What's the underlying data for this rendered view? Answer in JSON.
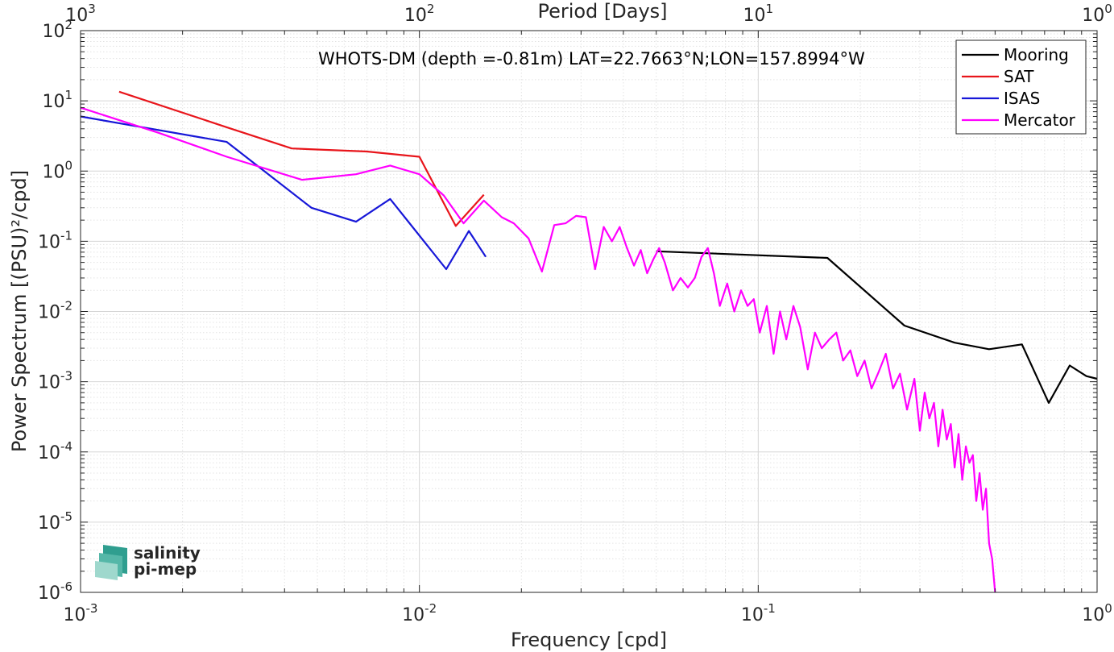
{
  "chart_data": {
    "type": "line",
    "annotation": "WHOTS-DM (depth =-0.81m) LAT=22.7663°N;LON=157.8994°W",
    "xlabel": "Frequency [cpd]",
    "ylabel": "Power Spectrum [(PSU)²/cpd]",
    "top_xlabel": "Period [Days]",
    "x_scale": "log",
    "y_scale": "log",
    "xlim": [
      0.001,
      1
    ],
    "ylim": [
      1e-06,
      100
    ],
    "grid": true,
    "legend_position": "top-right",
    "x_ticks": [
      {
        "base": "10",
        "exp": "-3"
      },
      {
        "base": "10",
        "exp": "-2"
      },
      {
        "base": "10",
        "exp": "-1"
      },
      {
        "base": "10",
        "exp": "0"
      }
    ],
    "top_ticks": [
      {
        "base": "10",
        "exp": "3"
      },
      {
        "base": "10",
        "exp": "2"
      },
      {
        "base": "10",
        "exp": "1"
      },
      {
        "base": "10",
        "exp": "0"
      }
    ],
    "y_ticks": [
      {
        "base": "10",
        "exp": "2"
      },
      {
        "base": "10",
        "exp": "1"
      },
      {
        "base": "10",
        "exp": "0"
      },
      {
        "base": "10",
        "exp": "-1"
      },
      {
        "base": "10",
        "exp": "-2"
      },
      {
        "base": "10",
        "exp": "-3"
      },
      {
        "base": "10",
        "exp": "-4"
      },
      {
        "base": "10",
        "exp": "-5"
      },
      {
        "base": "10",
        "exp": "-6"
      }
    ],
    "series": [
      {
        "name": "Mooring",
        "color": "#000000",
        "points": [
          [
            0.05,
            0.072
          ],
          [
            0.16,
            0.058
          ],
          [
            0.27,
            0.0063
          ],
          [
            0.38,
            0.0036
          ],
          [
            0.48,
            0.0029
          ],
          [
            0.6,
            0.0034
          ],
          [
            0.72,
            0.0005
          ],
          [
            0.83,
            0.0017
          ],
          [
            0.93,
            0.0012
          ],
          [
            1.0,
            0.0011
          ]
        ]
      },
      {
        "name": "SAT",
        "color": "#e8151b",
        "points": [
          [
            0.0013,
            13.5
          ],
          [
            0.0027,
            4.2
          ],
          [
            0.0042,
            2.1
          ],
          [
            0.007,
            1.9
          ],
          [
            0.01,
            1.6
          ],
          [
            0.0128,
            0.165
          ],
          [
            0.0155,
            0.46
          ]
        ]
      },
      {
        "name": "ISAS",
        "color": "#1717d8",
        "points": [
          [
            0.001,
            6.0
          ],
          [
            0.0027,
            2.6
          ],
          [
            0.0048,
            0.3
          ],
          [
            0.0065,
            0.19
          ],
          [
            0.0082,
            0.4
          ],
          [
            0.012,
            0.04
          ],
          [
            0.014,
            0.14
          ],
          [
            0.0157,
            0.06
          ]
        ]
      },
      {
        "name": "Mercator",
        "color": "#ff00ff",
        "points": [
          [
            0.001,
            8.0
          ],
          [
            0.0017,
            3.5
          ],
          [
            0.0027,
            1.6
          ],
          [
            0.0045,
            0.75
          ],
          [
            0.0065,
            0.9
          ],
          [
            0.0082,
            1.2
          ],
          [
            0.01,
            0.9
          ],
          [
            0.0118,
            0.45
          ],
          [
            0.0135,
            0.18
          ],
          [
            0.0155,
            0.38
          ],
          [
            0.0175,
            0.22
          ],
          [
            0.019,
            0.18
          ],
          [
            0.021,
            0.11
          ],
          [
            0.023,
            0.037
          ],
          [
            0.025,
            0.17
          ],
          [
            0.027,
            0.18
          ],
          [
            0.029,
            0.23
          ],
          [
            0.031,
            0.22
          ],
          [
            0.033,
            0.04
          ],
          [
            0.035,
            0.16
          ],
          [
            0.037,
            0.1
          ],
          [
            0.039,
            0.16
          ],
          [
            0.041,
            0.08
          ],
          [
            0.043,
            0.045
          ],
          [
            0.045,
            0.075
          ],
          [
            0.047,
            0.035
          ],
          [
            0.049,
            0.055
          ],
          [
            0.051,
            0.08
          ],
          [
            0.053,
            0.05
          ],
          [
            0.056,
            0.02
          ],
          [
            0.059,
            0.03
          ],
          [
            0.062,
            0.022
          ],
          [
            0.065,
            0.03
          ],
          [
            0.068,
            0.06
          ],
          [
            0.071,
            0.08
          ],
          [
            0.074,
            0.035
          ],
          [
            0.077,
            0.012
          ],
          [
            0.081,
            0.025
          ],
          [
            0.085,
            0.01
          ],
          [
            0.089,
            0.02
          ],
          [
            0.093,
            0.012
          ],
          [
            0.097,
            0.015
          ],
          [
            0.101,
            0.005
          ],
          [
            0.106,
            0.012
          ],
          [
            0.111,
            0.0025
          ],
          [
            0.116,
            0.01
          ],
          [
            0.121,
            0.004
          ],
          [
            0.127,
            0.012
          ],
          [
            0.133,
            0.006
          ],
          [
            0.14,
            0.0015
          ],
          [
            0.147,
            0.005
          ],
          [
            0.154,
            0.003
          ],
          [
            0.162,
            0.004
          ],
          [
            0.17,
            0.005
          ],
          [
            0.178,
            0.002
          ],
          [
            0.187,
            0.0028
          ],
          [
            0.196,
            0.0012
          ],
          [
            0.206,
            0.002
          ],
          [
            0.216,
            0.0008
          ],
          [
            0.227,
            0.0014
          ],
          [
            0.238,
            0.0025
          ],
          [
            0.25,
            0.0008
          ],
          [
            0.262,
            0.0013
          ],
          [
            0.275,
            0.0004
          ],
          [
            0.289,
            0.0011
          ],
          [
            0.3,
            0.0002
          ],
          [
            0.31,
            0.0007
          ],
          [
            0.32,
            0.0003
          ],
          [
            0.33,
            0.0005
          ],
          [
            0.34,
            0.00012
          ],
          [
            0.35,
            0.0004
          ],
          [
            0.36,
            0.00015
          ],
          [
            0.37,
            0.00025
          ],
          [
            0.38,
            6e-05
          ],
          [
            0.39,
            0.00018
          ],
          [
            0.4,
            4e-05
          ],
          [
            0.41,
            0.00012
          ],
          [
            0.42,
            7e-05
          ],
          [
            0.43,
            9e-05
          ],
          [
            0.44,
            2e-05
          ],
          [
            0.45,
            5e-05
          ],
          [
            0.46,
            1.5e-05
          ],
          [
            0.47,
            3e-05
          ],
          [
            0.48,
            5e-06
          ],
          [
            0.49,
            3e-06
          ],
          [
            0.5,
            1e-06
          ]
        ]
      }
    ]
  },
  "logo": {
    "line1": "salinity",
    "line2": "pi-mep",
    "color": "#1e9d8c"
  }
}
